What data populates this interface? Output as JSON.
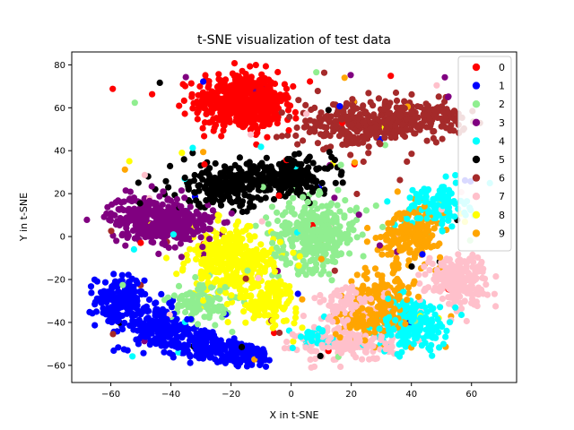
{
  "chart_data": {
    "type": "scatter",
    "title": "t-SNE visualization of test data",
    "xlabel": "X in t-SNE",
    "ylabel": "Y in t-SNE",
    "xlim": [
      -73,
      75
    ],
    "ylim": [
      -68,
      86
    ],
    "xticks": [
      -60,
      -40,
      -20,
      0,
      20,
      40,
      60
    ],
    "yticks": [
      -60,
      -40,
      -20,
      0,
      20,
      40,
      60,
      80
    ],
    "grid": false,
    "legend_position": "top-right",
    "series": [
      {
        "name": "0",
        "color": "#ff0000",
        "clusters": [
          {
            "cx": -18,
            "cy": 63,
            "sx": 7,
            "sy": 7,
            "n": 420
          },
          {
            "cx": -8,
            "cy": 60,
            "sx": 4,
            "sy": 5,
            "n": 120
          }
        ]
      },
      {
        "name": "1",
        "color": "#0000ff",
        "clusters": [
          {
            "cx": -57,
            "cy": -30,
            "sx": 4,
            "sy": 6,
            "n": 150
          },
          {
            "cx": -45,
            "cy": -42,
            "sx": 6,
            "sy": 5,
            "n": 170
          },
          {
            "cx": -30,
            "cy": -50,
            "sx": 5,
            "sy": 4,
            "n": 110
          },
          {
            "cx": -17,
            "cy": -55,
            "sx": 6,
            "sy": 3,
            "n": 120
          }
        ]
      },
      {
        "name": "2",
        "color": "#90ee90",
        "clusters": [
          {
            "cx": 8,
            "cy": 1,
            "sx": 7,
            "sy": 8,
            "n": 340
          },
          {
            "cx": -30,
            "cy": -30,
            "sx": 5,
            "sy": 5,
            "n": 110
          }
        ]
      },
      {
        "name": "3",
        "color": "#800080",
        "clusters": [
          {
            "cx": -47,
            "cy": 9,
            "sx": 7,
            "sy": 5,
            "n": 260
          },
          {
            "cx": -37,
            "cy": 5,
            "sx": 6,
            "sy": 5,
            "n": 170
          }
        ]
      },
      {
        "name": "4",
        "color": "#00ffff",
        "clusters": [
          {
            "cx": 40,
            "cy": -40,
            "sx": 6,
            "sy": 6,
            "n": 240
          },
          {
            "cx": 48,
            "cy": 14,
            "sx": 5,
            "sy": 5,
            "n": 130
          },
          {
            "cx": 8,
            "cy": -47,
            "sx": 4,
            "sy": 2,
            "n": 50
          }
        ]
      },
      {
        "name": "5",
        "color": "#000000",
        "clusters": [
          {
            "cx": -20,
            "cy": 24,
            "sx": 10,
            "sy": 5,
            "n": 260
          },
          {
            "cx": 0,
            "cy": 28,
            "sx": 7,
            "sy": 4,
            "n": 180
          }
        ]
      },
      {
        "name": "6",
        "color": "#a52a2a",
        "clusters": [
          {
            "cx": 22,
            "cy": 52,
            "sx": 10,
            "sy": 5,
            "n": 260
          },
          {
            "cx": 42,
            "cy": 55,
            "sx": 8,
            "sy": 4,
            "n": 180
          }
        ]
      },
      {
        "name": "7",
        "color": "#ffc0cb",
        "clusters": [
          {
            "cx": 55,
            "cy": -20,
            "sx": 5,
            "sy": 6,
            "n": 220
          },
          {
            "cx": 18,
            "cy": -50,
            "sx": 8,
            "sy": 4,
            "n": 170
          },
          {
            "cx": 20,
            "cy": -32,
            "sx": 6,
            "sy": 4,
            "n": 90
          }
        ]
      },
      {
        "name": "8",
        "color": "#ffff00",
        "clusters": [
          {
            "cx": -20,
            "cy": -12,
            "sx": 7,
            "sy": 8,
            "n": 330
          },
          {
            "cx": -8,
            "cy": -30,
            "sx": 5,
            "sy": 5,
            "n": 130
          }
        ]
      },
      {
        "name": "9",
        "color": "#ffa500",
        "clusters": [
          {
            "cx": 40,
            "cy": 2,
            "sx": 5,
            "sy": 6,
            "n": 180
          },
          {
            "cx": 30,
            "cy": -30,
            "sx": 5,
            "sy": 8,
            "n": 160
          },
          {
            "cx": 25,
            "cy": -40,
            "sx": 5,
            "sy": 3,
            "n": 100
          }
        ]
      }
    ]
  }
}
